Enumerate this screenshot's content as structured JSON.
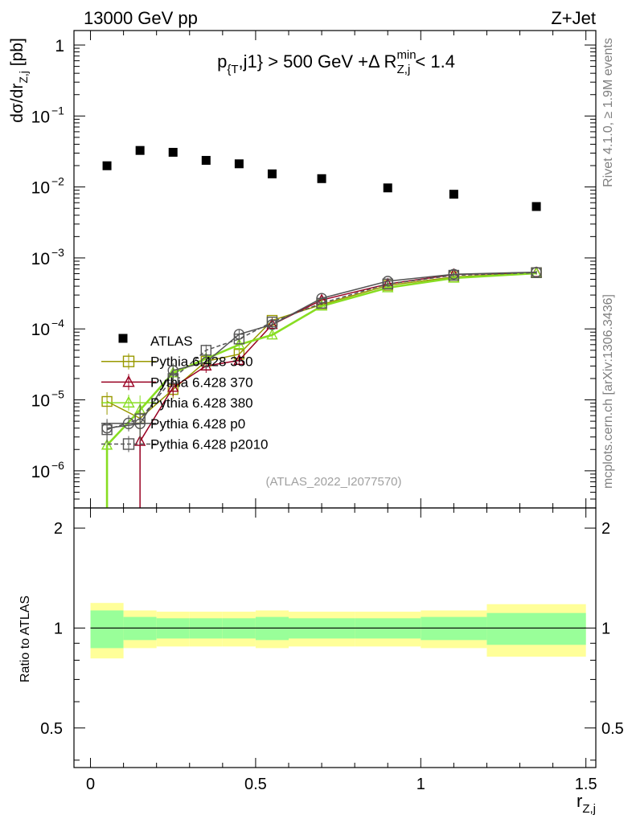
{
  "header": {
    "left": "13000 GeV pp",
    "right": "Z+Jet"
  },
  "side_labels": {
    "rivet": "Rivet 4.1.0, ≥ 1.9M events",
    "mcplots": "mcplots.cern.ch [arXiv:1306.3436]"
  },
  "watermark": "(ATLAS_2022_I2077570)",
  "chart_data": [
    {
      "type": "scatter",
      "panel": "main",
      "title": "p_{T},j1} > 500 GeV +Δ R_{Z,j}^{min} < 1.4",
      "title_parts": {
        "p": "p",
        "sub1": "{T",
        "mid": ",j1} > 500 GeV +Δ R",
        "sup": "min",
        "sub2": "Z,j",
        "end": " < 1.4"
      },
      "ylabel": {
        "main": "dσ/dr",
        "sub": "Z,j",
        "unit": " [pb]"
      },
      "yscale": "log",
      "ylim": [
        3e-07,
        1.6
      ],
      "xlim": [
        -0.05,
        1.53
      ],
      "yticks": [
        {
          "value": 1e-06,
          "base": "10",
          "exp": "−6"
        },
        {
          "value": 1e-05,
          "base": "10",
          "exp": "−5"
        },
        {
          "value": 0.0001,
          "base": "10",
          "exp": "−4"
        },
        {
          "value": 0.001,
          "base": "10",
          "exp": "−3"
        },
        {
          "value": 0.01,
          "base": "10",
          "exp": "−2"
        },
        {
          "value": 0.1,
          "base": "10",
          "exp": "−1"
        },
        {
          "value": 1,
          "base": "1",
          "exp": ""
        }
      ],
      "x": [
        0.05,
        0.15,
        0.25,
        0.35,
        0.45,
        0.55,
        0.7,
        0.9,
        1.1,
        1.35
      ],
      "series": [
        {
          "name": "ATLAS",
          "color": "#000000",
          "marker": "filled-square",
          "values": [
            0.0199,
            0.0327,
            0.0308,
            0.0237,
            0.0212,
            0.0153,
            0.0131,
            0.0097,
            0.0079,
            0.0053
          ]
        },
        {
          "name": "Pythia 6.428 350",
          "color": "#999900",
          "marker": "open-square",
          "dash": false,
          "values": [
            9.5e-06,
            5.5e-06,
            1.4e-05,
            3.5e-05,
            4.4e-05,
            0.000132,
            0.00022,
            0.00041,
            0.00054,
            0.00062
          ]
        },
        {
          "name": "Pythia 6.428 370",
          "color": "#990022",
          "marker": "open-triangle",
          "dash": false,
          "values": [
            null,
            2.6e-06,
            1.5e-05,
            3e-05,
            3.6e-05,
            0.000115,
            0.000255,
            0.00043,
            0.000585,
            0.00062
          ]
        },
        {
          "name": "Pythia 6.428 380",
          "color": "#88dd22",
          "marker": "open-triangle",
          "dash": false,
          "values": [
            2.3e-06,
            7.2e-06,
            2.4e-05,
            3.8e-05,
            6e-05,
            8.2e-05,
            0.00021,
            0.00038,
            0.00052,
            0.00061
          ]
        },
        {
          "name": "Pythia 6.428 p0",
          "color": "#555555",
          "marker": "open-circle",
          "dash": false,
          "values": [
            4e-06,
            4.6e-06,
            2.6e-05,
            3.4e-05,
            8.4e-05,
            0.000115,
            0.00027,
            0.00047,
            0.00059,
            0.00063
          ]
        },
        {
          "name": "Pythia 6.428 p2010",
          "color": "#555555",
          "marker": "open-square",
          "dash": true,
          "values": [
            3.8e-06,
            5.4e-06,
            2e-05,
            5e-05,
            7.2e-05,
            0.000125,
            0.00023,
            0.00043,
            0.00057,
            0.00062
          ]
        }
      ]
    },
    {
      "type": "band",
      "panel": "ratio",
      "ylabel": "Ratio to ATLAS",
      "xlabel": {
        "main": "r",
        "sub": "Z,j"
      },
      "ylim": [
        0.38,
        2.3
      ],
      "yticks": [
        {
          "value": 0.5,
          "label": "0.5"
        },
        {
          "value": 1,
          "label": "1"
        },
        {
          "value": 2,
          "label": "2"
        }
      ],
      "xticks": [
        {
          "value": 0,
          "label": "0"
        },
        {
          "value": 0.5,
          "label": "0.5"
        },
        {
          "value": 1,
          "label": "1"
        },
        {
          "value": 1.5,
          "label": "1.5"
        }
      ],
      "bins": [
        0,
        0.1,
        0.2,
        0.3,
        0.4,
        0.5,
        0.6,
        0.8,
        1.0,
        1.2,
        1.5
      ],
      "stat_band_color": "#99ff99",
      "total_band_color": "#ffff99",
      "stat_err": [
        0.13,
        0.08,
        0.07,
        0.07,
        0.07,
        0.08,
        0.07,
        0.07,
        0.08,
        0.11
      ],
      "total_err": [
        0.19,
        0.13,
        0.12,
        0.12,
        0.12,
        0.13,
        0.12,
        0.12,
        0.13,
        0.18
      ],
      "reference": 1
    }
  ]
}
